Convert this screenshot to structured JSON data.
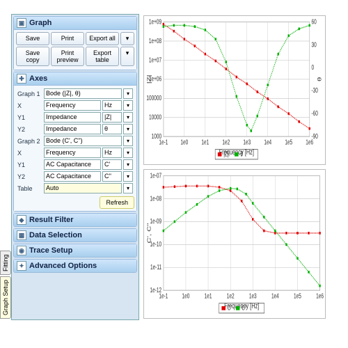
{
  "side_tabs": {
    "active": "Graph Setup",
    "items": [
      "Graph Setup",
      "Fitting"
    ]
  },
  "groups": {
    "graph": {
      "title": "Graph",
      "row1": {
        "save": "Save",
        "print": "Print",
        "export_all": "Export all"
      },
      "row2": {
        "save_copy": "Save copy",
        "print_preview": "Print preview",
        "export_table": "Export table"
      }
    },
    "axes": {
      "title": "Axes",
      "rows": [
        {
          "k": "Graph 1",
          "v": "Bode (|Z|, θ)",
          "unit": ""
        },
        {
          "k": "X",
          "v": "Frequency",
          "unit": "Hz"
        },
        {
          "k": "Y1",
          "v": "Impedance",
          "unit": "|Z|"
        },
        {
          "k": "Y2",
          "v": "Impedance",
          "unit": "θ"
        },
        {
          "k": "Graph 2",
          "v": "Bode (C', C'')",
          "unit": ""
        },
        {
          "k": "X",
          "v": "Frequency",
          "unit": "Hz"
        },
        {
          "k": "Y1",
          "v": "AC Capacitance",
          "unit": "C'"
        },
        {
          "k": "Y2",
          "v": "AC Capacitance",
          "unit": "C''"
        }
      ],
      "table": {
        "label": "Table",
        "v": "Auto"
      },
      "refresh": "Refresh"
    },
    "collapsed": [
      {
        "icon": "◆",
        "title": "Result Filter"
      },
      {
        "icon": "▦",
        "title": "Data Selection"
      },
      {
        "icon": "◉",
        "title": "Trace Setup"
      },
      {
        "icon": "✦",
        "title": "Advanced Options"
      }
    ]
  },
  "chart1": {
    "type": "dual-axis-log",
    "x": {
      "label": "Frequency [Hz]",
      "ticks": [
        "1e-1",
        "1e0",
        "1e1",
        "1e2",
        "1e3",
        "1e4",
        "1e5",
        "1e6"
      ]
    },
    "y1": {
      "label": "|Z|",
      "ticks": [
        "1000",
        "10000",
        "100000",
        "1e+06",
        "1e+07",
        "1e+08",
        "1e+09"
      ],
      "color": "#c00"
    },
    "y2": {
      "label": "θ",
      "ticks": [
        "-90",
        "-60",
        "-30",
        "0",
        "30",
        "60"
      ],
      "color": "#0a0"
    },
    "s1": {
      "color": "#e00000",
      "name": "|Z|",
      "pts": [
        [
          0,
          0.98
        ],
        [
          0.5,
          0.92
        ],
        [
          1,
          0.85
        ],
        [
          1.5,
          0.79
        ],
        [
          2,
          0.72
        ],
        [
          2.5,
          0.66
        ],
        [
          3,
          0.59
        ],
        [
          3.5,
          0.52
        ],
        [
          4,
          0.46
        ],
        [
          4.5,
          0.39
        ],
        [
          5,
          0.33
        ],
        [
          5.5,
          0.26
        ],
        [
          6,
          0.2
        ],
        [
          6.5,
          0.13
        ],
        [
          7,
          0.07
        ]
      ]
    },
    "s2": {
      "color": "#00b000",
      "name": "θ",
      "pts": [
        [
          0,
          0.96
        ],
        [
          0.5,
          0.97
        ],
        [
          1,
          0.97
        ],
        [
          1.5,
          0.96
        ],
        [
          2,
          0.93
        ],
        [
          2.5,
          0.85
        ],
        [
          3,
          0.65
        ],
        [
          3.5,
          0.35
        ],
        [
          4,
          0.1
        ],
        [
          4.2,
          0.05
        ],
        [
          4.5,
          0.18
        ],
        [
          5,
          0.45
        ],
        [
          5.5,
          0.72
        ],
        [
          6,
          0.88
        ],
        [
          6.5,
          0.94
        ],
        [
          7,
          0.97
        ]
      ]
    },
    "legend": {
      "items": [
        {
          "c": "#e00000",
          "t": "|Z|"
        },
        {
          "c": "#00b000",
          "t": "θ"
        }
      ]
    }
  },
  "chart2": {
    "type": "log-log",
    "x": {
      "label": "Frequency [Hz]",
      "ticks": [
        "1e-1",
        "1e0",
        "1e1",
        "1e2",
        "1e3",
        "1e4",
        "1e5",
        "1e6"
      ]
    },
    "y": {
      "label": "C', C''",
      "ticks": [
        "1e-12",
        "1e-11",
        "1e-10",
        "1e-09",
        "1e-08",
        "1e-07"
      ]
    },
    "s1": {
      "color": "#e00000",
      "name": "C'",
      "pts": [
        [
          0,
          0.9
        ],
        [
          0.5,
          0.905
        ],
        [
          1,
          0.91
        ],
        [
          1.5,
          0.91
        ],
        [
          2,
          0.91
        ],
        [
          2.5,
          0.9
        ],
        [
          3,
          0.87
        ],
        [
          3.5,
          0.78
        ],
        [
          4,
          0.62
        ],
        [
          4.5,
          0.52
        ],
        [
          5,
          0.5
        ],
        [
          5.5,
          0.5
        ],
        [
          6,
          0.5
        ],
        [
          6.5,
          0.5
        ],
        [
          7,
          0.5
        ]
      ]
    },
    "s2": {
      "color": "#00b000",
      "name": "C''",
      "pts": [
        [
          0,
          0.52
        ],
        [
          0.5,
          0.6
        ],
        [
          1,
          0.68
        ],
        [
          1.5,
          0.75
        ],
        [
          2,
          0.82
        ],
        [
          2.5,
          0.87
        ],
        [
          3,
          0.89
        ],
        [
          3.3,
          0.885
        ],
        [
          3.7,
          0.84
        ],
        [
          4,
          0.76
        ],
        [
          4.5,
          0.64
        ],
        [
          5,
          0.52
        ],
        [
          5.5,
          0.4
        ],
        [
          6,
          0.28
        ],
        [
          6.5,
          0.16
        ],
        [
          7,
          0.04
        ]
      ]
    },
    "legend": {
      "items": [
        {
          "c": "#e00000",
          "t": "C'"
        },
        {
          "c": "#00b000",
          "t": "C''"
        }
      ]
    }
  },
  "colors": {
    "panel_bg": "#d7e4f2",
    "highlight": "#fffde0"
  }
}
